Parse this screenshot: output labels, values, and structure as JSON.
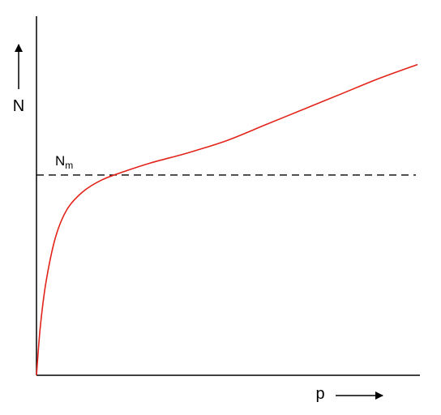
{
  "chart_data": {
    "type": "line",
    "title": "",
    "xlabel": "p",
    "ylabel": "N",
    "grid": false,
    "legend": "none",
    "xlim": [
      0,
      1
    ],
    "ylim": [
      0,
      1
    ],
    "series": [
      {
        "color": "#e2231a",
        "x": [
          0.0,
          0.01,
          0.025,
          0.05,
          0.08,
          0.12,
          0.17,
          0.23,
          0.3,
          0.4,
          0.5,
          0.6,
          0.7,
          0.8,
          0.9,
          1.0
        ],
        "y": [
          0.0,
          0.14,
          0.27,
          0.4,
          0.48,
          0.53,
          0.565,
          0.59,
          0.615,
          0.645,
          0.68,
          0.725,
          0.77,
          0.815,
          0.86,
          0.9
        ]
      }
    ],
    "reference_line": {
      "label_main": "N",
      "label_sub": "m",
      "y": 0.58,
      "style": "dashed",
      "color": "#000000"
    }
  }
}
